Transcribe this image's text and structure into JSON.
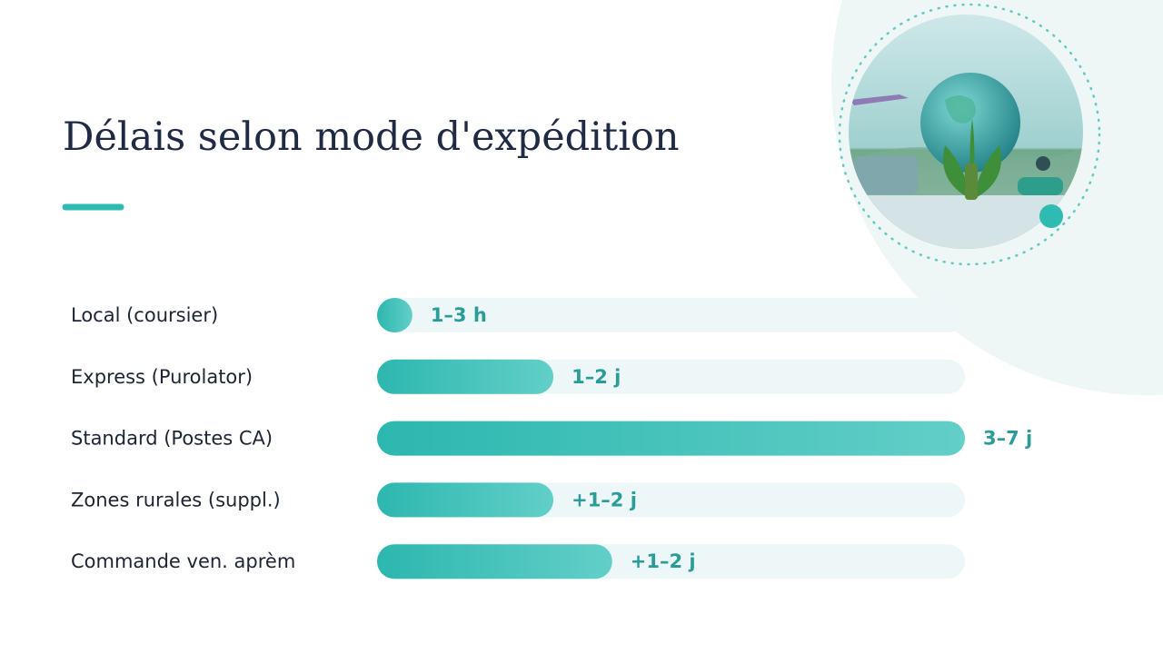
{
  "chart_data": {
    "type": "bar",
    "orientation": "horizontal",
    "title": "Délais selon mode d'expédition",
    "categories": [
      "Local (coursier)",
      "Express (Purolator)",
      "Standard (Postes CA)",
      "Zones rurales (suppl.)",
      "Commande ven. aprèm"
    ],
    "values": [
      6,
      30,
      100,
      30,
      40
    ],
    "duration_labels": [
      "1–3 h",
      "1–2 j",
      "3–7 j",
      "+1–2 j",
      "+1–2 j"
    ],
    "xlim": [
      0,
      100
    ],
    "color": "#2fbab2"
  }
}
